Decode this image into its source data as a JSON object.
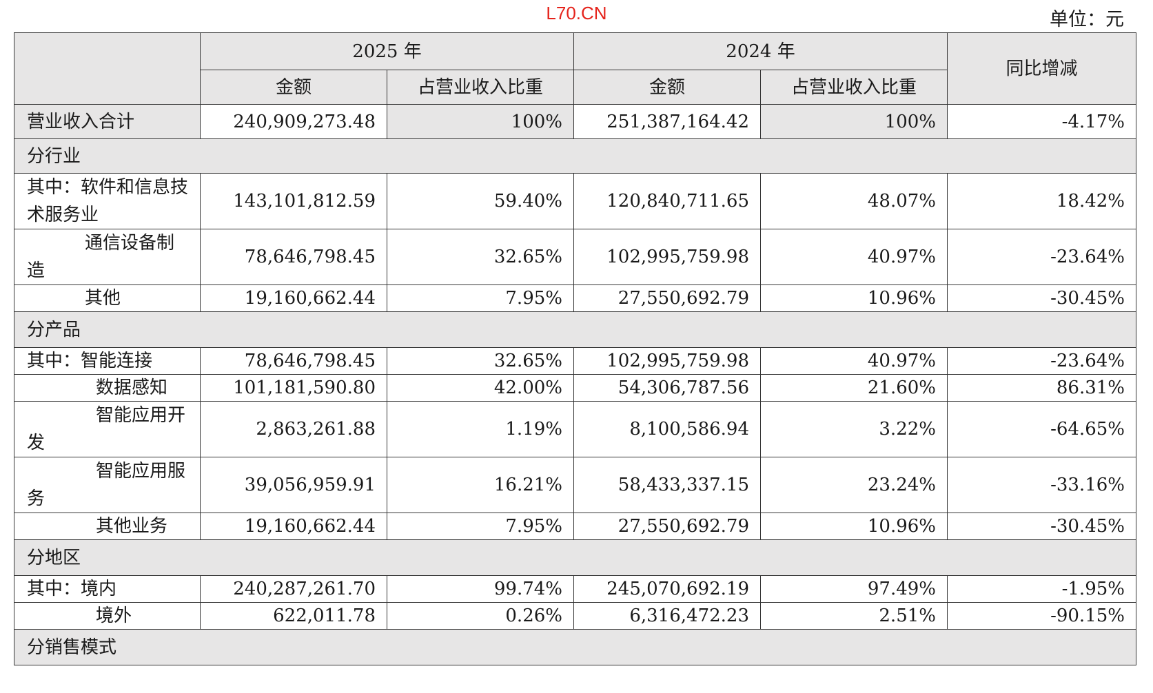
{
  "watermark": "L70.CN",
  "unit_label": "单位：元",
  "header": {
    "year_2025": "2025 年",
    "year_2024": "2024 年",
    "amount": "金额",
    "ratio": "占营业收入比重",
    "yoy": "同比增减"
  },
  "total": {
    "label": "营业收入合计",
    "amt2025": "240,909,273.48",
    "pct2025": "100%",
    "amt2024": "251,387,164.42",
    "pct2024": "100%",
    "yoy": "-4.17%"
  },
  "sections": {
    "industry": "分行业",
    "product": "分产品",
    "region": "分地区",
    "sales_mode": "分销售模式"
  },
  "industry_rows": [
    {
      "label": "其中：软件和信息技术服务业",
      "amt2025": "143,101,812.59",
      "pct2025": "59.40%",
      "amt2024": "120,840,711.65",
      "pct2024": "48.07%",
      "yoy": "18.42%"
    },
    {
      "label": "通信设备制造",
      "amt2025": "78,646,798.45",
      "pct2025": "32.65%",
      "amt2024": "102,995,759.98",
      "pct2024": "40.97%",
      "yoy": "-23.64%"
    },
    {
      "label": "其他",
      "amt2025": "19,160,662.44",
      "pct2025": "7.95%",
      "amt2024": "27,550,692.79",
      "pct2024": "10.96%",
      "yoy": "-30.45%"
    }
  ],
  "product_rows": [
    {
      "label": "其中：智能连接",
      "amt2025": "78,646,798.45",
      "pct2025": "32.65%",
      "amt2024": "102,995,759.98",
      "pct2024": "40.97%",
      "yoy": "-23.64%"
    },
    {
      "label": "数据感知",
      "amt2025": "101,181,590.80",
      "pct2025": "42.00%",
      "amt2024": "54,306,787.56",
      "pct2024": "21.60%",
      "yoy": "86.31%"
    },
    {
      "label": "智能应用开发",
      "amt2025": "2,863,261.88",
      "pct2025": "1.19%",
      "amt2024": "8,100,586.94",
      "pct2024": "3.22%",
      "yoy": "-64.65%"
    },
    {
      "label": "智能应用服务",
      "amt2025": "39,056,959.91",
      "pct2025": "16.21%",
      "amt2024": "58,433,337.15",
      "pct2024": "23.24%",
      "yoy": "-33.16%"
    },
    {
      "label": "其他业务",
      "amt2025": "19,160,662.44",
      "pct2025": "7.95%",
      "amt2024": "27,550,692.79",
      "pct2024": "10.96%",
      "yoy": "-30.45%"
    }
  ],
  "region_rows": [
    {
      "label": "其中：境内",
      "amt2025": "240,287,261.70",
      "pct2025": "99.74%",
      "amt2024": "245,070,692.19",
      "pct2024": "97.49%",
      "yoy": "-1.95%"
    },
    {
      "label": "境外",
      "amt2025": "622,011.78",
      "pct2025": "0.26%",
      "amt2024": "6,316,472.23",
      "pct2024": "2.51%",
      "yoy": "-90.15%"
    }
  ]
}
